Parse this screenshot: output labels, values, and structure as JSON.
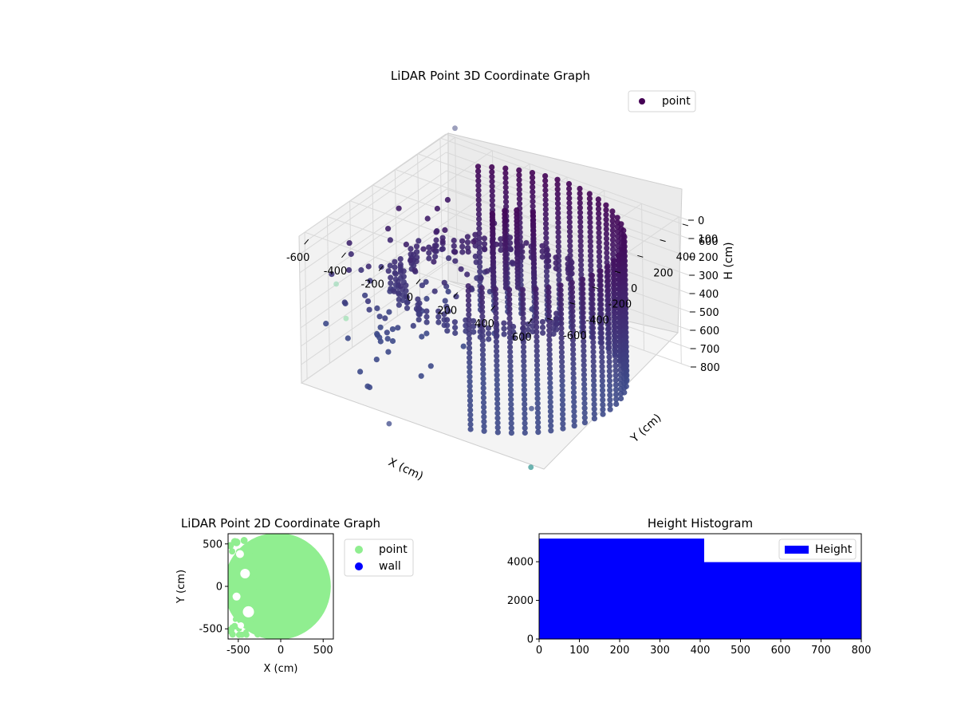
{
  "chart_data": [
    {
      "type": "scatter",
      "projection": "3d",
      "title": "LiDAR Point 3D Coordinate Graph",
      "xlabel": "X (cm)",
      "ylabel": "Y (cm)",
      "zlabel": "H (cm)",
      "xlim": [
        -650,
        650
      ],
      "ylim": [
        -650,
        650
      ],
      "zlim": [
        800,
        0
      ],
      "z_inverted": true,
      "xticks": [
        "-600",
        "-400",
        "-200",
        "0",
        "200",
        "400",
        "600"
      ],
      "yticks": [
        "-600",
        "-400",
        "-200",
        "0",
        "200",
        "400",
        "600"
      ],
      "zticks": [
        "0",
        "100",
        "200",
        "300",
        "400",
        "500",
        "600",
        "700",
        "800"
      ],
      "legend": {
        "placement": "top-right",
        "entries": [
          {
            "label": "point",
            "color": "#440154"
          }
        ]
      },
      "colormap": "viridis",
      "series": [
        {
          "name": "point",
          "shape": "cylindrical wall",
          "radius": 600,
          "center": [
            0,
            0
          ],
          "angle_range_deg": [
            -70,
            130
          ],
          "h_range": [
            0,
            800
          ]
        },
        {
          "name": "point",
          "shape": "ring",
          "radius": 430,
          "center": [
            -40,
            30
          ],
          "angle_range_deg": [
            60,
            350
          ],
          "h": 420
        }
      ],
      "outliers": [
        {
          "x": -600,
          "y": 650,
          "h": -50,
          "color": "#7b7fa5"
        },
        {
          "x": -700,
          "y": -250,
          "h": 450,
          "color": "#a3dcbc"
        },
        {
          "x": -650,
          "y": -250,
          "h": 620,
          "color": "#a0e0b4"
        },
        {
          "x": -150,
          "y": -700,
          "h": 820,
          "color": "#3e4a89"
        },
        {
          "x": 500,
          "y": -520,
          "h": 900,
          "color": "#3a9a96"
        },
        {
          "x": 250,
          "y": -100,
          "h": 850,
          "color": "#3e4a89"
        }
      ]
    },
    {
      "type": "scatter",
      "title": "LiDAR Point 2D Coordinate Graph",
      "xlabel": "X (cm)",
      "ylabel": "Y (cm)",
      "xlim": [
        -620,
        620
      ],
      "ylim": [
        -620,
        620
      ],
      "xticks": [
        -500,
        0,
        500
      ],
      "yticks": [
        -500,
        0,
        500
      ],
      "legend": {
        "placement": "outside-right",
        "entries": [
          {
            "label": "point",
            "color": "#90ee90"
          },
          {
            "label": "wall",
            "color": "#0000ff"
          }
        ]
      },
      "series": [
        {
          "name": "point",
          "color": "#90ee90",
          "shape": "filled region",
          "radius": 600,
          "extent_x": [
            -620,
            620
          ],
          "extent_y": [
            -620,
            620
          ]
        },
        {
          "name": "wall",
          "color": "#0000ff",
          "values": []
        }
      ]
    },
    {
      "type": "bar",
      "subtype": "histogram",
      "title": "Height Histogram",
      "xlim": [
        0,
        800
      ],
      "ylim": [
        0,
        5450
      ],
      "xticks": [
        0,
        100,
        200,
        300,
        400,
        500,
        600,
        700,
        800
      ],
      "yticks": [
        0,
        2000,
        4000
      ],
      "legend": {
        "placement": "top-right",
        "entries": [
          {
            "label": "Height",
            "color": "#0000ff"
          }
        ]
      },
      "bins": [
        {
          "start": 0,
          "end": 410,
          "count": 5200
        },
        {
          "start": 410,
          "end": 800,
          "count": 3980
        }
      ],
      "color": "#0000ff"
    }
  ]
}
